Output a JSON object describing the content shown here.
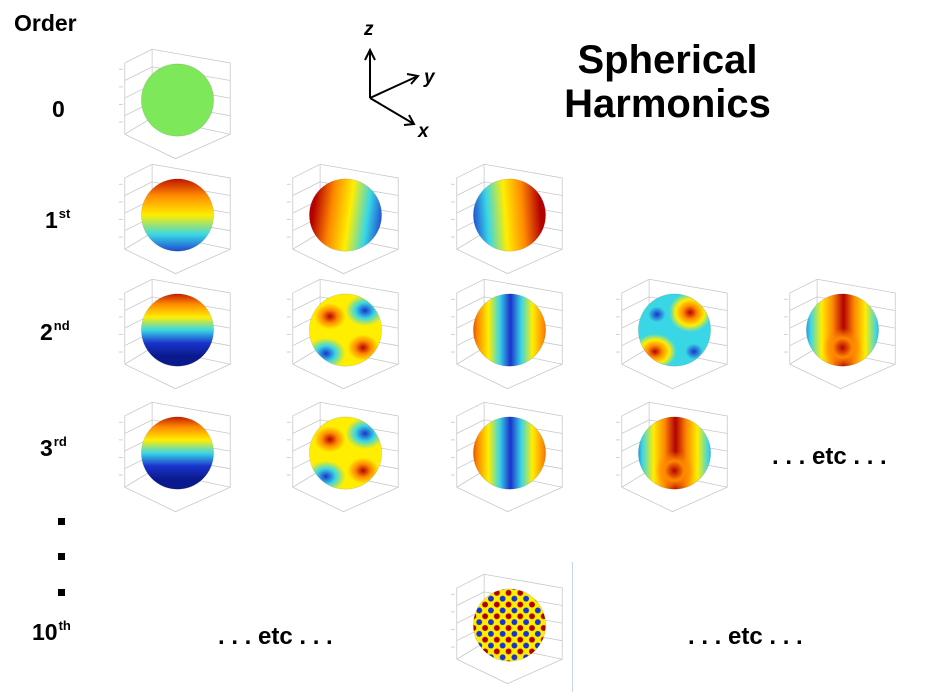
{
  "title": {
    "line1": "Spherical",
    "line2": "Harmonics"
  },
  "order_header": "Order",
  "rows": [
    {
      "base": "0",
      "sup": "",
      "spheres": [
        "uniform"
      ]
    },
    {
      "base": "1",
      "sup": "st",
      "spheres": [
        "z-dipole",
        "y-dipole",
        "x-dipole"
      ]
    },
    {
      "base": "2",
      "sup": "nd",
      "spheres": [
        "zonal",
        "tesseral-a",
        "tesseral-b",
        "tesseral-c",
        "sectoral"
      ]
    },
    {
      "base": "3",
      "sup": "rd",
      "spheres": [
        "zonal",
        "tesseral-a",
        "tesseral-b",
        "sectoral"
      ]
    },
    {
      "base": "10",
      "sup": "th",
      "spheres": [
        "high-order"
      ]
    }
  ],
  "etc_text": ". . . etc . . .",
  "axes": {
    "z": "z",
    "y": "y",
    "x": "x"
  },
  "colors": {
    "uniform": "#7CE85A",
    "red": "#B40000",
    "orange": "#FF8A00",
    "yellow": "#FFEE00",
    "cyan": "#39D7E6",
    "blue": "#1A33CC",
    "darkblue": "#0A1A8C"
  }
}
